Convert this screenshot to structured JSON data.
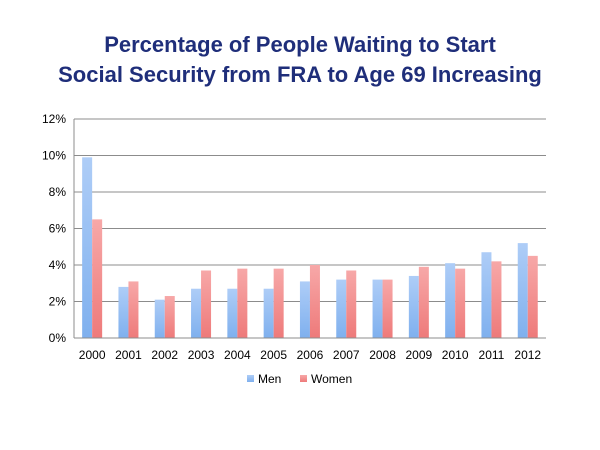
{
  "chart_data": {
    "type": "bar",
    "title_line1": "Percentage of People Waiting to Start",
    "title_line2": "Social Security from FRA to Age 69 Increasing",
    "xlabel": "",
    "ylabel": "",
    "categories": [
      "2000",
      "2001",
      "2002",
      "2003",
      "2004",
      "2005",
      "2006",
      "2007",
      "2008",
      "2009",
      "2010",
      "2011",
      "2012"
    ],
    "series": [
      {
        "name": "Men",
        "color_top": "#aecdf7",
        "color_bottom": "#7fb0ee",
        "values": [
          9.9,
          2.8,
          2.1,
          2.7,
          2.7,
          2.7,
          3.1,
          3.2,
          3.2,
          3.4,
          4.1,
          4.7,
          5.2
        ]
      },
      {
        "name": "Women",
        "color_top": "#f7a8a8",
        "color_bottom": "#ee7a7a",
        "values": [
          6.5,
          3.1,
          2.3,
          3.7,
          3.8,
          3.8,
          4.0,
          3.7,
          3.2,
          3.9,
          3.8,
          4.2,
          4.5
        ]
      }
    ],
    "y_ticks": [
      "0%",
      "2%",
      "4%",
      "6%",
      "8%",
      "10%",
      "12%"
    ],
    "ylim": [
      0,
      12
    ],
    "grid": true,
    "legend_position": "bottom"
  }
}
